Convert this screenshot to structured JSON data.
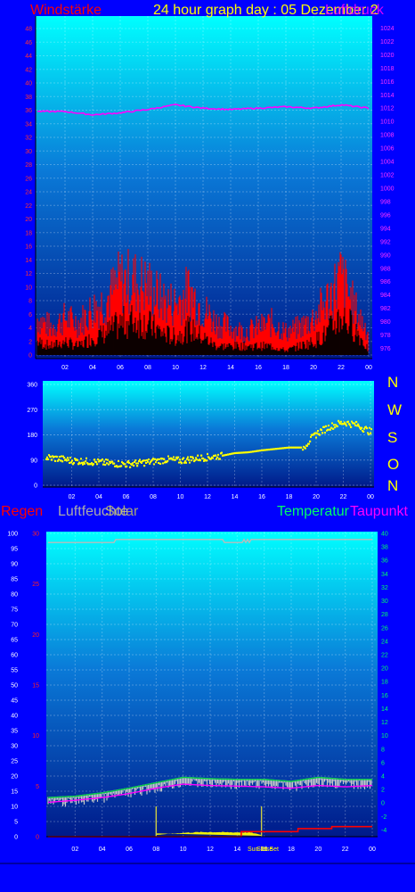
{
  "header": {
    "title": "24 hour graph day : 05 Dezember 2",
    "wind_label": "Windstärke",
    "pressure_label": "Luftdruck"
  },
  "compass": [
    "N",
    "W",
    "S",
    "O",
    "N"
  ],
  "lower_labels": {
    "rain": "Regen",
    "humidity": "Luftfeuchte",
    "solar": "Solar",
    "temperature": "Temperatur",
    "dewpoint": "Taupunkt",
    "sunrise": "Sun Rise",
    "sunset": "Sun Set"
  },
  "colors": {
    "wind": "#ff0000",
    "pressure": "#ff00ff",
    "direction": "#ffff00",
    "temperature": "#00cc44",
    "dewpoint": "#ff00ff",
    "humidity": "#bbbbbb",
    "solar": "#ffff00",
    "rain": "#ff0000"
  },
  "chart_data": [
    {
      "type": "line",
      "panel": "wind",
      "x_ticks": [
        "02",
        "04",
        "06",
        "08",
        "10",
        "12",
        "14",
        "16",
        "18",
        "20",
        "22",
        "00"
      ],
      "y_left_ticks": [
        "0",
        "2",
        "4",
        "6",
        "8",
        "10",
        "12",
        "14",
        "16",
        "18",
        "20",
        "22",
        "24",
        "26",
        "28",
        "30",
        "32",
        "34",
        "36",
        "38",
        "40",
        "42",
        "44",
        "46",
        "48"
      ],
      "y_left_range": [
        0,
        48
      ],
      "y_right_ticks": [
        "976",
        "978",
        "980",
        "982",
        "984",
        "986",
        "988",
        "990",
        "992",
        "994",
        "996",
        "998",
        "1000",
        "1002",
        "1004",
        "1006",
        "1008",
        "1010",
        "1012",
        "1014",
        "1016",
        "1018",
        "1020",
        "1022",
        "1024"
      ],
      "y_right_range": [
        975,
        1025
      ],
      "gust_envelope": {
        "x": [
          0,
          1,
          2,
          3,
          4,
          5,
          6,
          7,
          8,
          9,
          10,
          11,
          12,
          13,
          14,
          15,
          16,
          17,
          18,
          19,
          20,
          21,
          22,
          23,
          24
        ],
        "values": [
          8,
          6,
          8,
          7,
          10,
          12,
          16,
          16,
          15,
          12,
          11,
          14,
          10,
          7,
          6,
          5,
          6,
          7,
          5,
          6,
          8,
          12,
          17,
          10,
          5
        ]
      },
      "avg_envelope": {
        "x": [
          0,
          1,
          2,
          3,
          4,
          5,
          6,
          7,
          8,
          9,
          10,
          11,
          12,
          13,
          14,
          15,
          16,
          17,
          18,
          19,
          20,
          21,
          22,
          23,
          24
        ],
        "values": [
          3,
          2,
          3,
          2,
          4,
          5,
          7,
          8,
          7,
          5,
          4,
          6,
          4,
          2,
          2,
          2,
          2,
          2,
          1,
          2,
          3,
          5,
          9,
          6,
          1
        ]
      },
      "pressure": {
        "x": [
          0,
          2,
          4,
          6,
          8,
          10,
          12,
          14,
          16,
          18,
          20,
          22,
          24
        ],
        "values": [
          1011.5,
          1011.5,
          1011,
          1011.3,
          1011.8,
          1012.5,
          1012,
          1011.8,
          1012,
          1012.2,
          1012,
          1012.5,
          1012
        ]
      }
    },
    {
      "type": "scatter",
      "panel": "wind-direction",
      "x_ticks": [
        "02",
        "04",
        "06",
        "08",
        "10",
        "12",
        "14",
        "16",
        "18",
        "20",
        "22",
        "00"
      ],
      "y_ticks": [
        "0",
        "90",
        "180",
        "270",
        "360"
      ],
      "y_range": [
        0,
        360
      ],
      "x": [
        0,
        1,
        2,
        3,
        4,
        5,
        6,
        7,
        8,
        9,
        10,
        11,
        12,
        13,
        14,
        15,
        16,
        17,
        18,
        19,
        20,
        21,
        22,
        23,
        24
      ],
      "values": [
        100,
        95,
        88,
        85,
        82,
        78,
        75,
        80,
        85,
        92,
        88,
        95,
        100,
        105,
        115,
        118,
        125,
        130,
        135,
        135,
        185,
        210,
        225,
        215,
        190
      ]
    },
    {
      "type": "line",
      "panel": "climate",
      "x_ticks": [
        "02",
        "04",
        "06",
        "08",
        "10",
        "12",
        "14",
        "16",
        "18",
        "20",
        "22",
        "00"
      ],
      "y_humidity_ticks": [
        "0",
        "5",
        "10",
        "15",
        "20",
        "25",
        "30",
        "35",
        "40",
        "45",
        "50",
        "55",
        "60",
        "65",
        "70",
        "75",
        "80",
        "85",
        "90",
        "95",
        "100"
      ],
      "y_humidity_range": [
        0,
        100
      ],
      "y_rain_ticks": [
        "0",
        "5",
        "10",
        "15",
        "20",
        "25",
        "30"
      ],
      "y_rain_range": [
        0,
        30
      ],
      "y_temp_ticks": [
        "-4",
        "-2",
        "0",
        "2",
        "4",
        "6",
        "8",
        "10",
        "12",
        "14",
        "16",
        "18",
        "20",
        "22",
        "24",
        "26",
        "28",
        "30",
        "32",
        "34",
        "36",
        "38",
        "40"
      ],
      "y_temp_range": [
        -5,
        40
      ],
      "sunrise_x": 8.0,
      "sunset_x": 15.8,
      "humidity": {
        "x": [
          0,
          2,
          4,
          6,
          8,
          10,
          12,
          14,
          16,
          18,
          20,
          22,
          24
        ],
        "values": [
          97,
          97,
          97,
          98,
          98,
          98,
          98,
          97,
          98,
          98,
          98,
          98,
          98
        ]
      },
      "temperature": {
        "x": [
          0,
          2,
          4,
          6,
          8,
          10,
          12,
          14,
          16,
          18,
          20,
          22,
          24
        ],
        "values": [
          0.8,
          1.0,
          1.5,
          2.2,
          3.0,
          3.8,
          3.6,
          3.5,
          3.5,
          3.2,
          3.8,
          3.5,
          3.5
        ]
      },
      "dewpoint": {
        "x": [
          0,
          2,
          4,
          6,
          8,
          10,
          12,
          14,
          16,
          18,
          20,
          22,
          24
        ],
        "values": [
          0.5,
          0.8,
          1.2,
          1.8,
          2.6,
          3.2,
          3.0,
          2.9,
          2.8,
          2.6,
          3.0,
          2.8,
          3.0
        ]
      },
      "solar": {
        "x": [
          8.0,
          9.0,
          10.0,
          11.0,
          12.0,
          13.0,
          14.0,
          15.0,
          15.8
        ],
        "values": [
          0,
          2,
          4,
          5,
          5.5,
          5,
          4.8,
          4.5,
          0
        ]
      },
      "rain": {
        "x": [
          0,
          14.3,
          14.3,
          18.5,
          18.5,
          21.0,
          21.0,
          24
        ],
        "values": [
          0,
          0,
          0.5,
          0.5,
          0.8,
          0.8,
          1.0,
          1.0
        ]
      }
    }
  ]
}
